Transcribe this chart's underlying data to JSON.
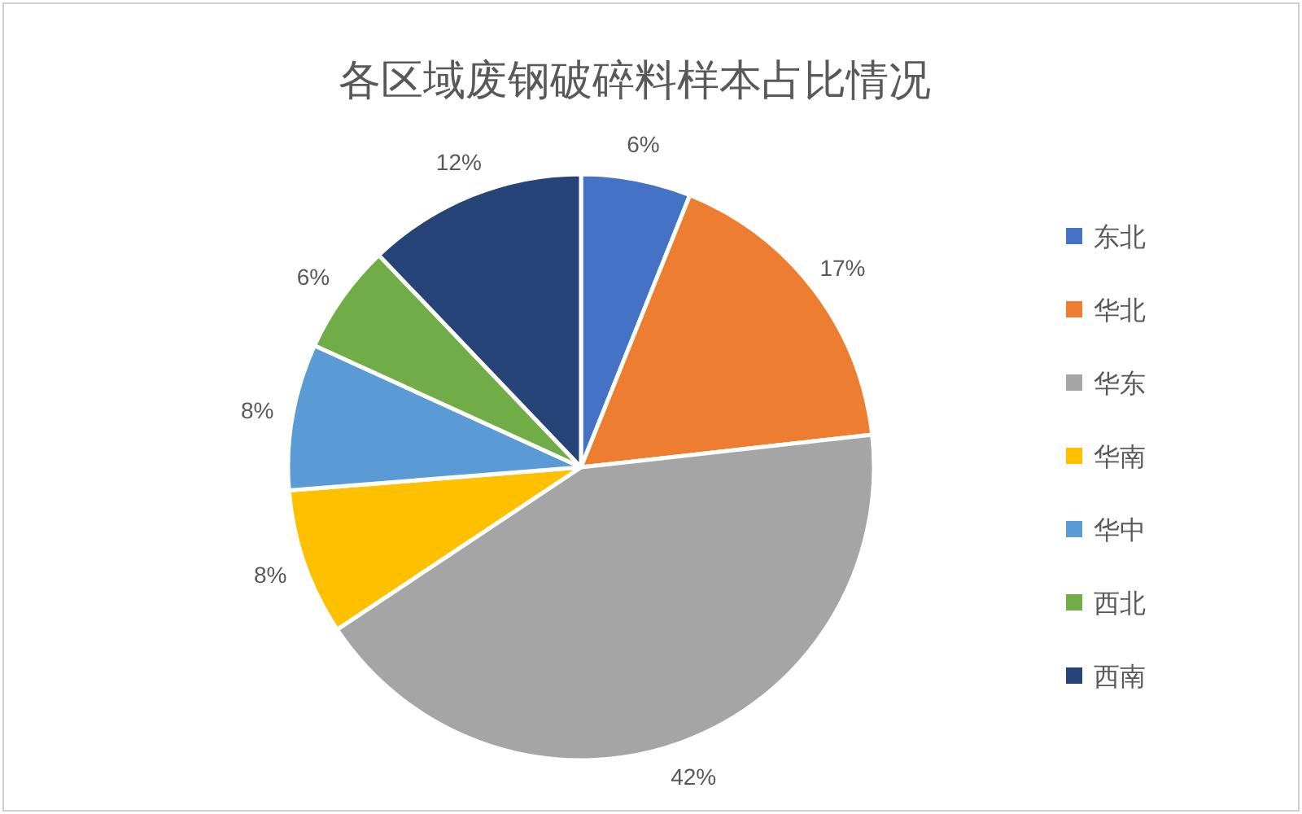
{
  "chart_data": {
    "type": "pie",
    "title": "各区域废钢破碎料样本占比情况",
    "categories": [
      "东北",
      "华北",
      "华东",
      "华南",
      "华中",
      "西北",
      "西南"
    ],
    "values": [
      6,
      17,
      42,
      8,
      8,
      6,
      12
    ],
    "value_labels": [
      "6%",
      "17%",
      "42%",
      "8%",
      "8%",
      "6%",
      "12%"
    ],
    "colors": [
      "#4472c4",
      "#ed7d31",
      "#a5a5a5",
      "#ffc000",
      "#5b9bd5",
      "#70ad47",
      "#264478"
    ],
    "legend": "right"
  }
}
